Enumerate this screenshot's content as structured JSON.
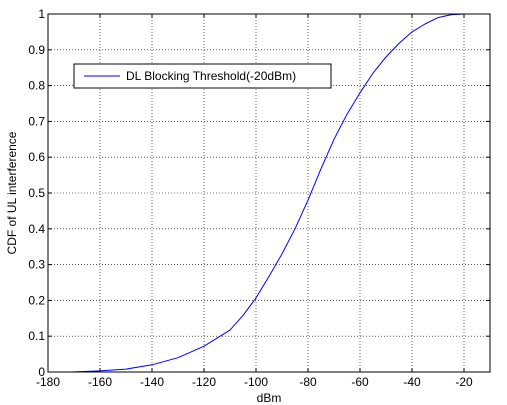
{
  "chart_data": {
    "type": "line",
    "title": "",
    "xlabel": "dBm",
    "ylabel": "CDF of UL interference",
    "xlim": [
      -180,
      -10
    ],
    "ylim": [
      0,
      1
    ],
    "x_ticks": [
      -180,
      -160,
      -140,
      -120,
      -100,
      -80,
      -60,
      -40,
      -20
    ],
    "x_tick_labels": [
      "-180",
      "-160",
      "-140",
      "-120",
      "-100",
      "-80",
      "-60",
      "-40",
      "-20"
    ],
    "y_ticks": [
      0,
      0.1,
      0.2,
      0.3,
      0.4,
      0.5,
      0.6,
      0.7,
      0.8,
      0.9,
      1
    ],
    "y_tick_labels": [
      "0",
      "0.1",
      "0.2",
      "0.3",
      "0.4",
      "0.5",
      "0.6",
      "0.7",
      "0.8",
      "0.9",
      "1"
    ],
    "grid": true,
    "legend_position": "top-left",
    "series": [
      {
        "name": "DL Blocking Threshold(-20dBm)",
        "color": "#0000ff",
        "x": [
          -171,
          -160,
          -150,
          -140,
          -130,
          -120,
          -110,
          -105,
          -100,
          -95,
          -90,
          -85,
          -80,
          -75,
          -70,
          -65,
          -60,
          -55,
          -50,
          -45,
          -40,
          -35,
          -30,
          -25,
          -20,
          -15
        ],
        "y": [
          0.0,
          0.003,
          0.008,
          0.02,
          0.04,
          0.072,
          0.117,
          0.158,
          0.207,
          0.267,
          0.33,
          0.4,
          0.48,
          0.568,
          0.65,
          0.72,
          0.78,
          0.835,
          0.88,
          0.918,
          0.95,
          0.972,
          0.99,
          0.998,
          1.0,
          1.0
        ]
      }
    ]
  }
}
